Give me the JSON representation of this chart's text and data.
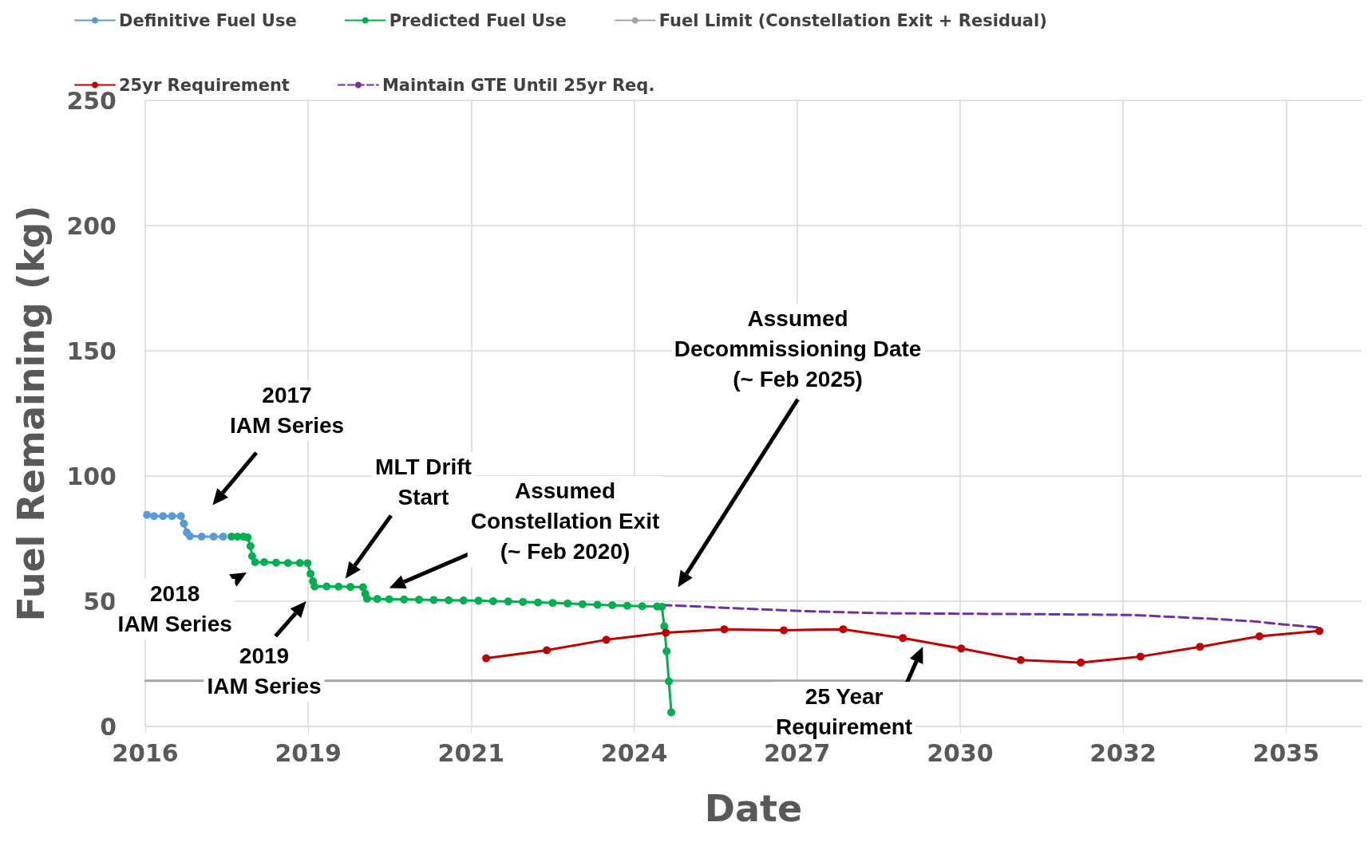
{
  "chart_data": {
    "type": "line",
    "xlabel": "Date",
    "ylabel": "Fuel Remaining (kg)",
    "xlim": [
      "2016-05-27",
      "2036-11-02"
    ],
    "ylim": [
      0,
      250
    ],
    "yticks": [
      0,
      50,
      100,
      150,
      200,
      250
    ],
    "xticks": [
      {
        "value": "2016-05-27",
        "label": "2016"
      },
      {
        "value": "2019-02-21",
        "label": "2019"
      },
      {
        "value": "2021-11-17",
        "label": "2021"
      },
      {
        "value": "2024-08-13",
        "label": "2024"
      },
      {
        "value": "2027-05-10",
        "label": "2027"
      },
      {
        "value": "2030-02-03",
        "label": "2030"
      },
      {
        "value": "2032-10-30",
        "label": "2032"
      },
      {
        "value": "2035-07-27",
        "label": "2035"
      }
    ],
    "grid": true,
    "legend": "top",
    "marker": "circle",
    "series": [
      {
        "name": "Definitive Fuel Use",
        "color": "#5b9bd5",
        "x": [
          "2016-06-07",
          "2016-07-20",
          "2016-09-13",
          "2016-11-07",
          "2017-01-01",
          "2017-01-19",
          "2017-02-06",
          "2017-02-25",
          "2017-05-08",
          "2017-07-20",
          "2017-09-17"
        ],
        "values": [
          84.5,
          84,
          84,
          84,
          84,
          81,
          77.5,
          76,
          75.8,
          75.8,
          75.8
        ]
      },
      {
        "name": "Predicted Fuel Use",
        "color": "#00b050",
        "x": [
          "2017-11-07",
          "2017-12-14",
          "2018-01-19",
          "2018-02-14",
          "2018-03-04",
          "2018-03-14",
          "2018-04-01",
          "2018-05-27",
          "2018-08-08",
          "2018-10-20",
          "2019-01-01",
          "2019-02-17",
          "2019-03-07",
          "2019-03-22",
          "2019-04-01",
          "2019-06-14",
          "2019-08-26",
          "2019-11-07",
          "2020-01-23",
          "2020-02-06",
          "2020-02-17",
          "2020-04-20",
          "2020-07-02",
          "2020-10-01",
          "2021-01-01",
          "2021-04-01",
          "2021-07-02",
          "2021-10-01",
          "2022-01-01",
          "2022-04-01",
          "2022-07-02",
          "2022-10-01",
          "2023-01-01",
          "2023-04-01",
          "2023-07-02",
          "2023-10-01",
          "2024-01-01",
          "2024-04-01",
          "2024-07-02",
          "2024-10-01",
          "2025-01-01",
          "2025-01-30",
          "2025-02-14",
          "2025-02-28",
          "2025-03-14",
          "2025-03-29"
        ],
        "values": [
          75.8,
          75.8,
          75.8,
          75.5,
          72,
          68,
          65.6,
          65.6,
          65.4,
          65.3,
          65.3,
          65.2,
          61,
          58,
          55.9,
          55.9,
          55.8,
          55.7,
          55.6,
          53,
          51,
          50.9,
          50.8,
          50.7,
          50.6,
          50.5,
          50.4,
          50.3,
          50.2,
          50.0,
          49.9,
          49.7,
          49.5,
          49.3,
          49.1,
          48.8,
          48.6,
          48.4,
          48.2,
          48.0,
          47.9,
          47.8,
          40,
          30,
          18,
          5.6
        ]
      },
      {
        "name": "Fuel Limit (Constellation Exit + Residual)",
        "color": "#a5a5a5",
        "marker": "none",
        "x": [
          "2016-05-27",
          "2036-11-02"
        ],
        "values": [
          18.2,
          18.2
        ]
      },
      {
        "name": "25yr Requirement",
        "color": "#c00000",
        "x": [
          "2022-02-17",
          "2023-02-24",
          "2024-02-24",
          "2025-02-24",
          "2026-02-17",
          "2027-02-17",
          "2028-02-17",
          "2029-02-17",
          "2030-02-10",
          "2031-02-10",
          "2032-02-14",
          "2033-02-14",
          "2034-02-14",
          "2035-02-14",
          "2036-02-17"
        ],
        "values": [
          27.2,
          30.4,
          34.6,
          37.4,
          38.8,
          38.4,
          38.8,
          35.3,
          31.1,
          26.5,
          25.5,
          27.9,
          31.8,
          36.0,
          38.1
        ]
      },
      {
        "name": "Maintain GTE Until 25yr Req.",
        "color": "#7030a0",
        "marker": "none",
        "line_style": "dashed",
        "x": [
          "2025-01-30",
          "2026-07-02",
          "2027-07-02",
          "2028-10-20",
          "2030-02-06",
          "2031-07-02",
          "2033-01-01",
          "2034-04-20",
          "2035-01-01",
          "2035-07-02",
          "2036-02-17"
        ],
        "values": [
          48.5,
          47,
          46,
          45.2,
          45,
          44.8,
          44.5,
          43,
          42,
          40.8,
          39.5
        ]
      }
    ],
    "annotations": [
      "2017\nIAM Series",
      "2018\nIAM Series",
      "2019\nIAM Series",
      "MLT Drift\nStart",
      "Assumed\nConstellation Exit\n(~ Feb 2020)",
      "Assumed\nDecommissioning Date\n(~ Feb 2025)",
      "25 Year\nRequirement"
    ]
  }
}
